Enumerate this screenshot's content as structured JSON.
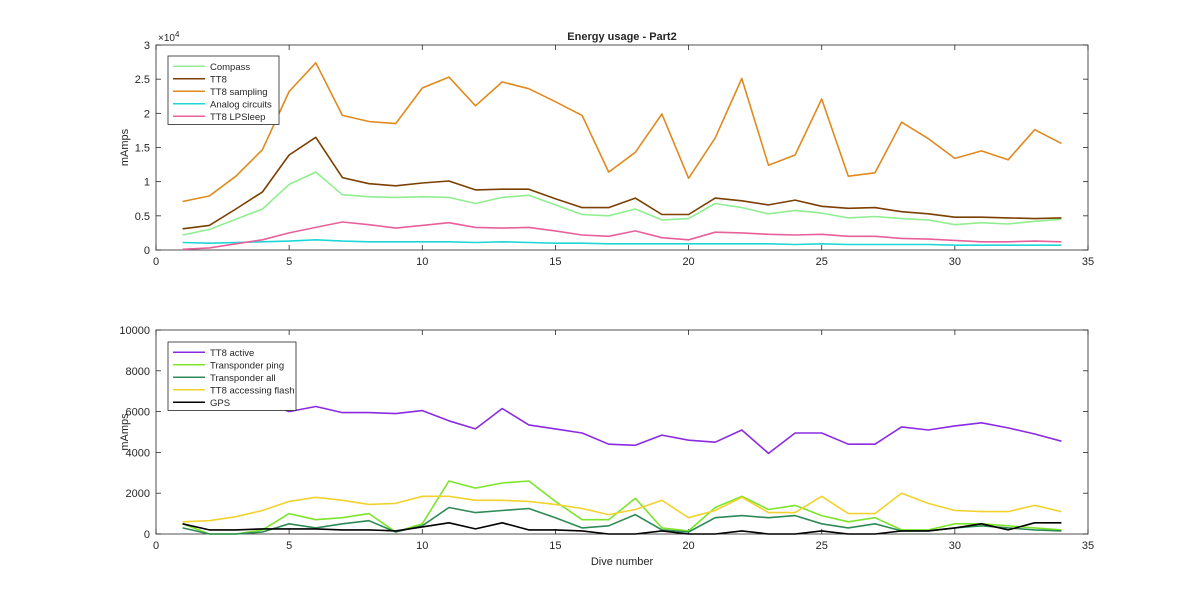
{
  "chart_data": [
    {
      "type": "line",
      "title": "Energy usage - Part2",
      "xlabel": "",
      "ylabel": "mAmps",
      "xlim": [
        0,
        35
      ],
      "ylim": [
        0,
        30000
      ],
      "xticks": [
        0,
        5,
        10,
        15,
        20,
        25,
        30,
        35
      ],
      "yticks": [
        0,
        5000,
        10000,
        15000,
        20000,
        25000,
        30000
      ],
      "ytick_labels": [
        "0",
        "0.5",
        "1",
        "1.5",
        "2",
        "2.5",
        "3"
      ],
      "y_exponent_label": "×10",
      "y_exponent_power": "4",
      "legend_position": "top-left",
      "grid": false,
      "x": [
        1,
        2,
        3,
        4,
        5,
        6,
        7,
        8,
        9,
        10,
        11,
        12,
        13,
        14,
        15,
        16,
        17,
        18,
        19,
        20,
        21,
        22,
        23,
        24,
        25,
        26,
        27,
        28,
        29,
        30,
        31,
        32,
        33,
        34
      ],
      "series": [
        {
          "name": "Compass",
          "color": "#90ee90",
          "values": [
            2200,
            3000,
            4500,
            6000,
            9600,
            11400,
            8100,
            7800,
            7700,
            7800,
            7700,
            6800,
            7700,
            8000,
            6600,
            5200,
            5000,
            6000,
            4400,
            4600,
            6800,
            6200,
            5300,
            5800,
            5400,
            4700,
            4900,
            4600,
            4400,
            3700,
            4000,
            3800,
            4200,
            4500
          ]
        },
        {
          "name": "TT8",
          "color": "#7b3f00",
          "values": [
            3100,
            3600,
            6000,
            8500,
            13900,
            16500,
            10600,
            9700,
            9400,
            9800,
            10100,
            8800,
            8900,
            8900,
            7500,
            6200,
            6200,
            7600,
            5200,
            5200,
            7600,
            7200,
            6600,
            7300,
            6400,
            6100,
            6200,
            5600,
            5300,
            4800,
            4800,
            4700,
            4600,
            4700
          ]
        },
        {
          "name": "TT8 sampling",
          "color": "#e08a1e",
          "values": [
            7100,
            7900,
            10800,
            14700,
            23200,
            27400,
            19700,
            18800,
            18500,
            23700,
            25300,
            21100,
            24600,
            23600,
            21700,
            19700,
            11400,
            14300,
            19900,
            10500,
            16400,
            25100,
            12400,
            13900,
            22100,
            10800,
            11300,
            18700,
            16300,
            13400,
            14500,
            13200,
            17600,
            15600
          ]
        },
        {
          "name": "Analog circuits",
          "color": "#1fd6d6",
          "values": [
            1100,
            1000,
            1100,
            1200,
            1300,
            1500,
            1300,
            1200,
            1200,
            1200,
            1200,
            1100,
            1200,
            1100,
            1000,
            1000,
            900,
            900,
            900,
            900,
            900,
            900,
            900,
            800,
            900,
            800,
            800,
            800,
            800,
            700,
            700,
            700,
            700,
            700
          ]
        },
        {
          "name": "TT8 LPSleep",
          "color": "#e8609b",
          "values": [
            100,
            300,
            900,
            1500,
            2500,
            3300,
            4100,
            3700,
            3200,
            3600,
            4000,
            3300,
            3200,
            3300,
            2800,
            2200,
            2000,
            2800,
            1800,
            1500,
            2600,
            2500,
            2300,
            2200,
            2300,
            2000,
            2000,
            1700,
            1600,
            1400,
            1200,
            1200,
            1300,
            1200
          ]
        }
      ]
    },
    {
      "type": "line",
      "title": "",
      "xlabel": "Dive number",
      "ylabel": "mAmps",
      "xlim": [
        0,
        35
      ],
      "ylim": [
        0,
        10000
      ],
      "xticks": [
        0,
        5,
        10,
        15,
        20,
        25,
        30,
        35
      ],
      "yticks": [
        0,
        2000,
        4000,
        6000,
        8000,
        10000
      ],
      "ytick_labels": [
        "0",
        "2000",
        "4000",
        "6000",
        "8000",
        "10000"
      ],
      "legend_position": "top-left",
      "grid": false,
      "x": [
        1,
        2,
        3,
        4,
        5,
        6,
        7,
        8,
        9,
        10,
        11,
        12,
        13,
        14,
        15,
        16,
        17,
        18,
        19,
        20,
        21,
        22,
        23,
        24,
        25,
        26,
        27,
        28,
        29,
        30,
        31,
        32,
        33,
        34
      ],
      "series": [
        {
          "name": "TT8 active",
          "color": "#8a2be2",
          "values": [
            6600,
            6500,
            6500,
            6500,
            6000,
            6250,
            5950,
            5950,
            5900,
            6050,
            5550,
            5150,
            6150,
            5350,
            5150,
            4950,
            4400,
            4350,
            4850,
            4600,
            4500,
            5100,
            3950,
            4950,
            4950,
            4400,
            4400,
            5250,
            5100,
            5300,
            5450,
            5200,
            4900,
            4550
          ]
        },
        {
          "name": "Transponder ping",
          "color": "#7ce52a",
          "values": [
            500,
            0,
            0,
            200,
            1000,
            700,
            800,
            1000,
            100,
            500,
            2600,
            2250,
            2500,
            2600,
            1600,
            700,
            700,
            1750,
            300,
            150,
            1300,
            1850,
            1200,
            1400,
            900,
            600,
            800,
            200,
            200,
            500,
            500,
            400,
            300,
            200
          ]
        },
        {
          "name": "Transponder all",
          "color": "#2e8b57",
          "values": [
            300,
            0,
            0,
            100,
            500,
            300,
            500,
            650,
            100,
            400,
            1300,
            1050,
            1150,
            1250,
            800,
            300,
            400,
            950,
            200,
            100,
            800,
            900,
            800,
            900,
            500,
            300,
            500,
            150,
            150,
            300,
            400,
            300,
            200,
            150
          ]
        },
        {
          "name": "TT8 accessing flash",
          "color": "#f2d22e",
          "values": [
            600,
            650,
            850,
            1150,
            1600,
            1800,
            1650,
            1450,
            1500,
            1850,
            1850,
            1650,
            1650,
            1600,
            1450,
            1250,
            950,
            1200,
            1650,
            800,
            1150,
            1800,
            1050,
            1050,
            1850,
            1000,
            1000,
            2000,
            1500,
            1150,
            1100,
            1100,
            1400,
            1100
          ]
        },
        {
          "name": "GPS",
          "color": "#000000",
          "values": [
            500,
            200,
            200,
            250,
            250,
            250,
            200,
            200,
            150,
            350,
            550,
            250,
            550,
            200,
            200,
            150,
            0,
            0,
            150,
            0,
            0,
            150,
            0,
            0,
            150,
            0,
            0,
            150,
            150,
            300,
            500,
            200,
            550,
            550
          ]
        }
      ]
    }
  ]
}
